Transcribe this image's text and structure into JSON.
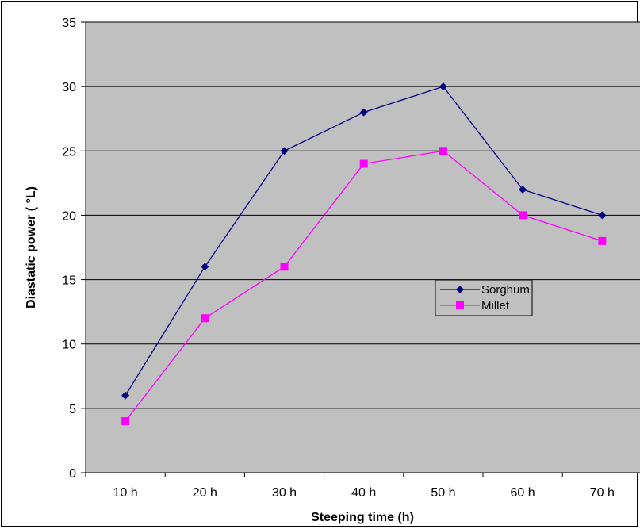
{
  "chart_data": {
    "type": "line",
    "categories": [
      "10 h",
      "20 h",
      "30 h",
      "40 h",
      "50 h",
      "60 h",
      "70 h"
    ],
    "series": [
      {
        "name": "Sorghum",
        "values": [
          6,
          16,
          25,
          28,
          30,
          22,
          20
        ],
        "color": "#000080",
        "marker": "diamond"
      },
      {
        "name": "Millet",
        "values": [
          4,
          12,
          16,
          24,
          25,
          20,
          18
        ],
        "color": "#FF00FF",
        "marker": "square"
      }
    ],
    "title": "",
    "xlabel": "Steeping time (h)",
    "ylabel": "Diastatic power ( °L)",
    "ylim": [
      0,
      35
    ],
    "yticks": [
      0,
      5,
      10,
      15,
      20,
      25,
      30,
      35
    ],
    "grid": "horizontal",
    "plot_background": "#C0C0C0",
    "legend_position": "right-center"
  }
}
